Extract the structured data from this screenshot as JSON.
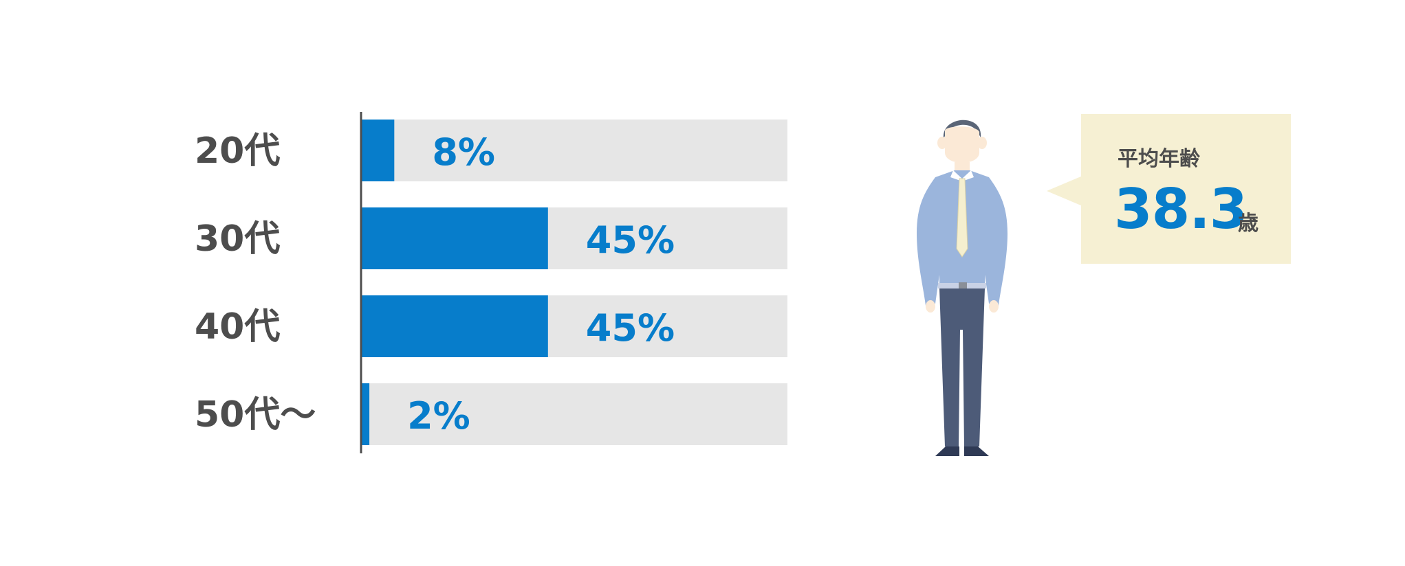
{
  "chart_data": {
    "type": "bar",
    "orientation": "horizontal",
    "categories": [
      "20代",
      "30代",
      "40代",
      "50代〜"
    ],
    "values": [
      8,
      45,
      45,
      2
    ],
    "value_labels": [
      "8%",
      "45%",
      "45%",
      "2%"
    ],
    "xlim": [
      0,
      100
    ],
    "grid": false,
    "colors": {
      "bar": "#077dcb",
      "track": "#e6e6e6",
      "label": "#077dcb",
      "category": "#4d4d4d",
      "axis": "#4d4d4d"
    }
  },
  "average": {
    "title": "平均年齢",
    "value": "38.3",
    "unit": "歳",
    "colors": {
      "panel": "#f6f0d3",
      "value": "#077dcb",
      "text": "#4d4d4d"
    }
  },
  "illustration": {
    "icon": "businessman-icon"
  }
}
